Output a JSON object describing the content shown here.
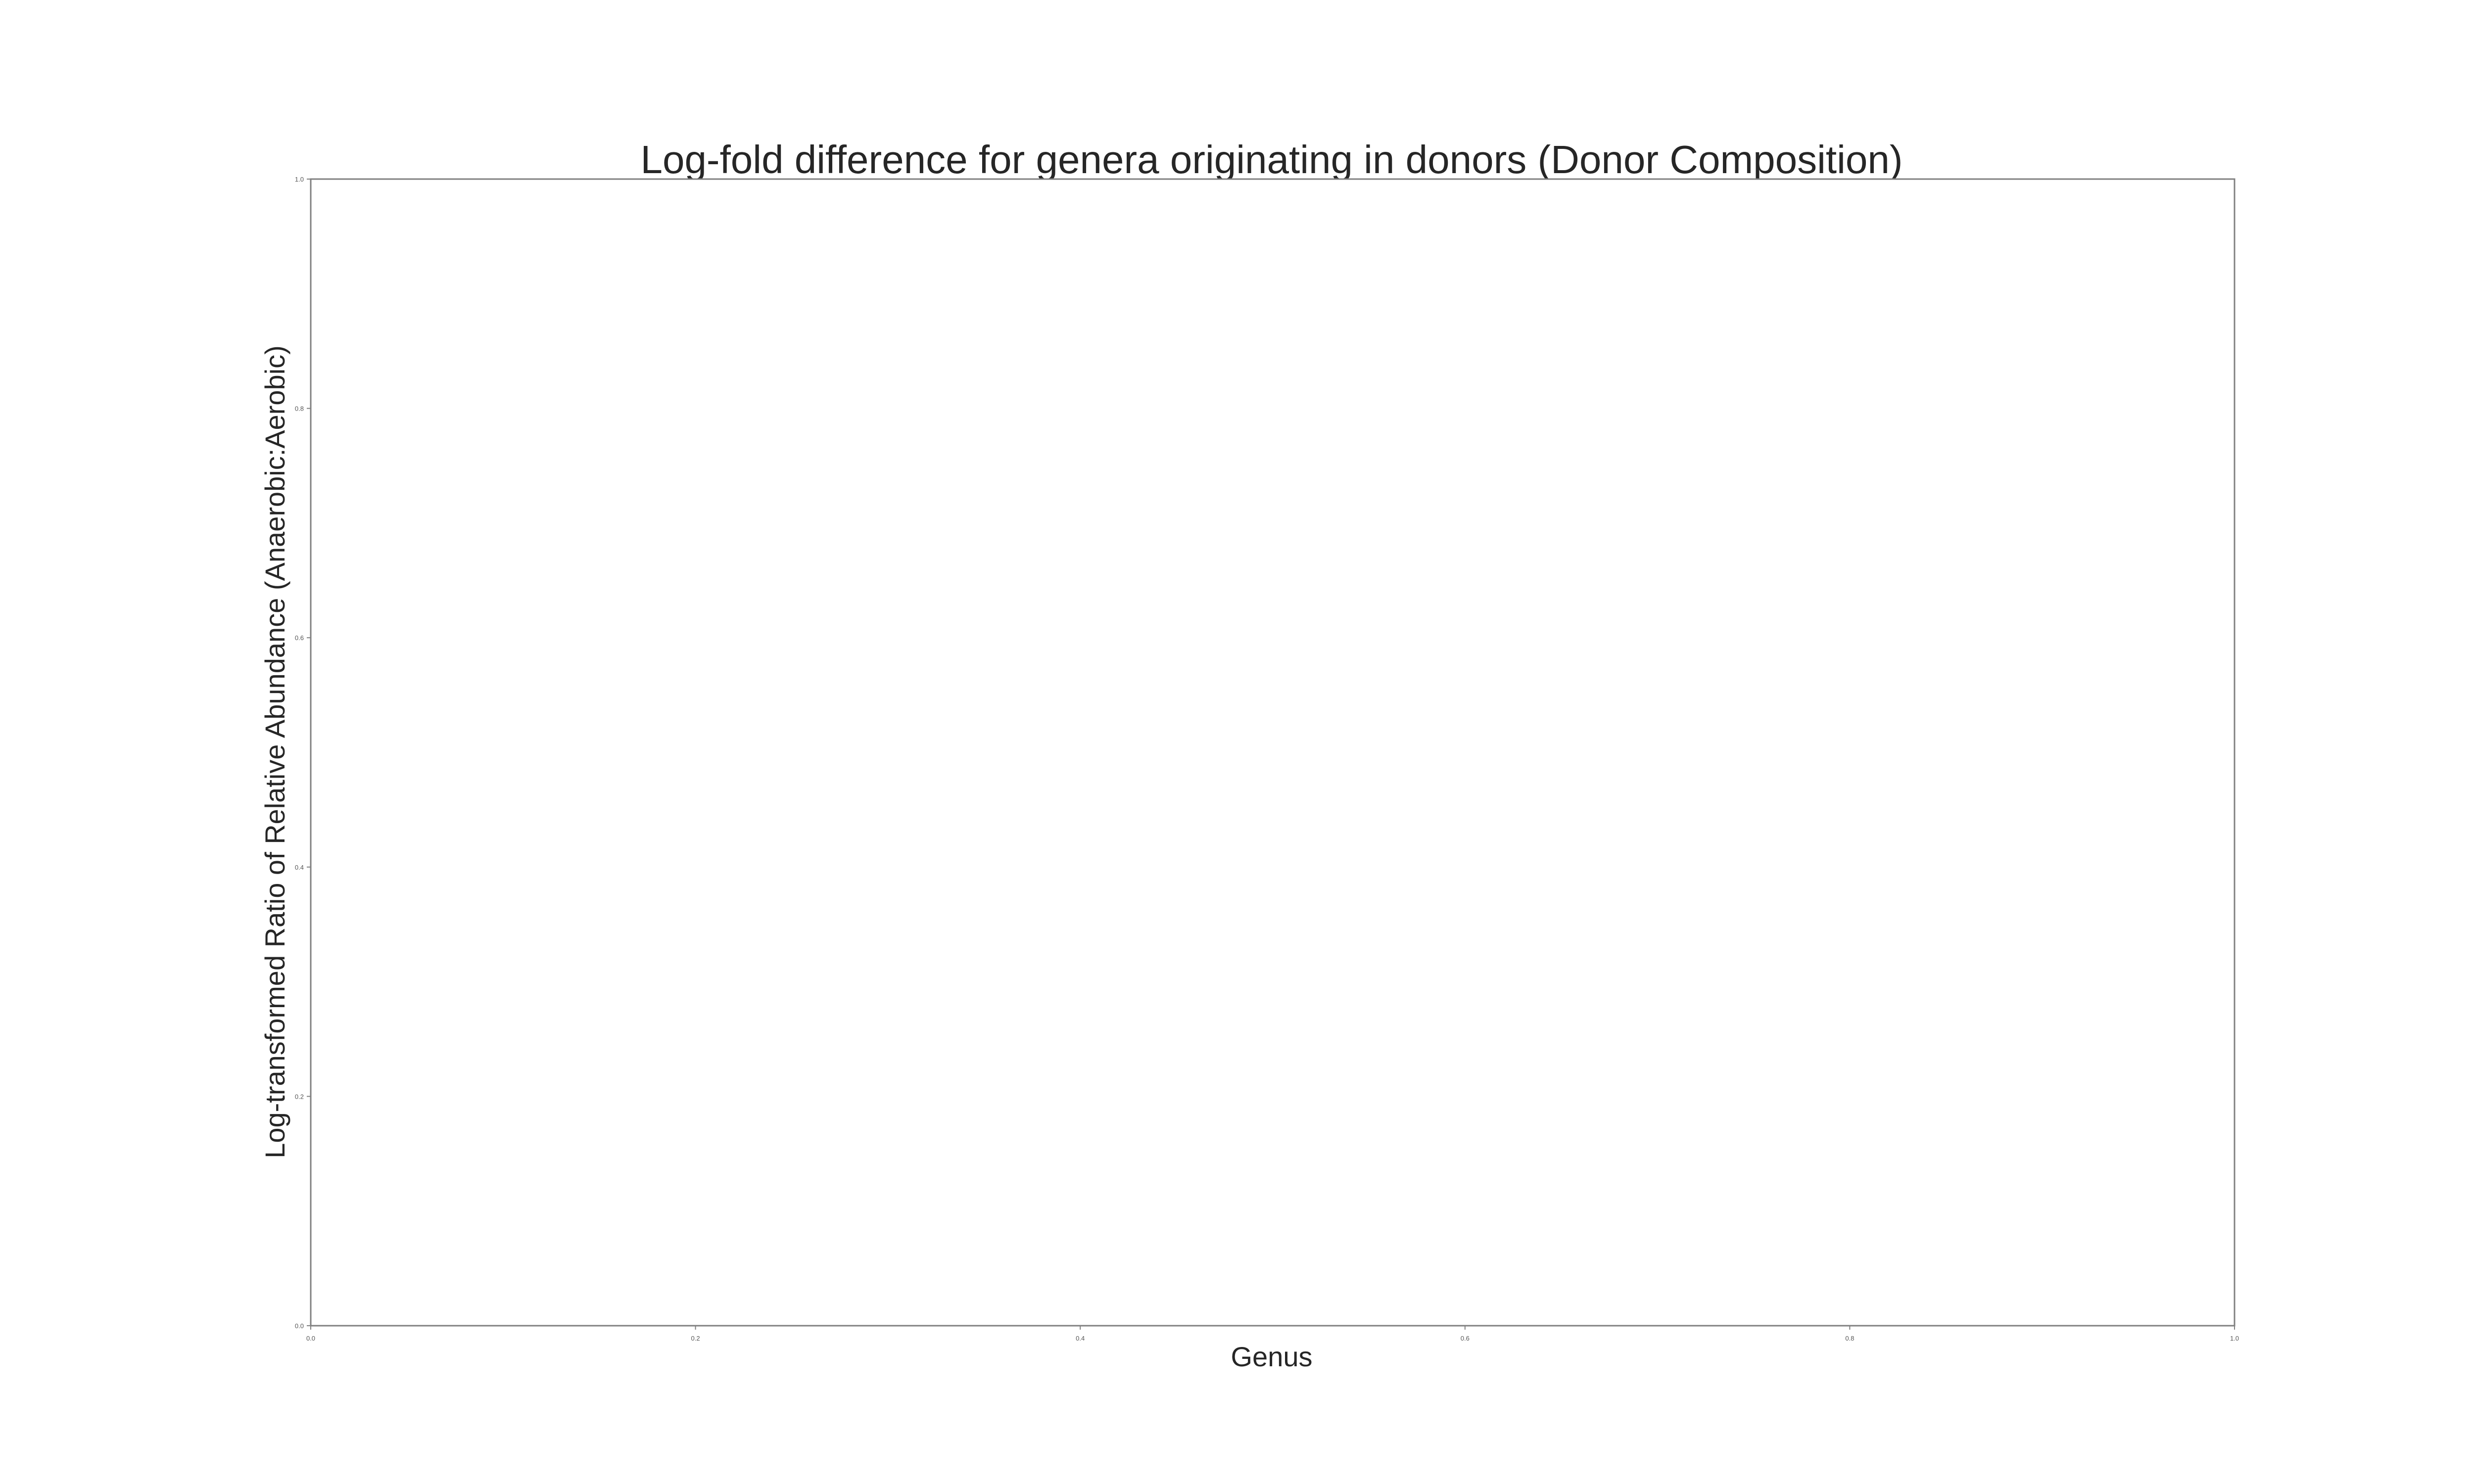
{
  "chart_data": {
    "type": "bar",
    "title": "Log-fold difference for genera originating in donors (Donor Composition)",
    "xlabel": "Genus",
    "ylabel": "Log-transformed Ratio of Relative Abundance (Anaerobic:Aerobic)",
    "categories": [],
    "values": [],
    "xlim": [
      0,
      1
    ],
    "ylim": [
      0,
      1
    ],
    "x_ticks": [
      "0.0",
      "0.2",
      "0.4",
      "0.6",
      "0.8",
      "1.0"
    ],
    "y_ticks": [
      "0.0",
      "0.2",
      "0.4",
      "0.6",
      "0.8",
      "1.0"
    ],
    "grid": false,
    "colors": {
      "frame": "#808080",
      "text": "#262626",
      "tick_text": "#555555"
    }
  }
}
